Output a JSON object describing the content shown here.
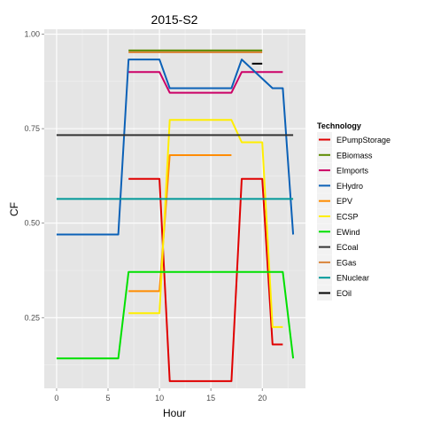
{
  "chart_data": {
    "type": "line",
    "title": "2015-S2",
    "xlabel": "Hour",
    "ylabel": "CF",
    "xlim": [
      -1.2,
      24.2
    ],
    "ylim": [
      0.063,
      1.013
    ],
    "x_ticks": [
      0,
      5,
      10,
      15,
      20
    ],
    "x_tick_labels": [
      "0",
      "5",
      "10",
      "15",
      "20"
    ],
    "y_ticks": [
      0.25,
      0.5,
      0.75,
      1.0
    ],
    "y_tick_labels": [
      "0.25",
      "0.50",
      "0.75",
      "1.00"
    ],
    "grid": true,
    "legend_title": "Technology",
    "legend_position": "right",
    "series": [
      {
        "name": "EPumpStorage",
        "color": "#e00000",
        "x": [
          7,
          10,
          11,
          17,
          18,
          20,
          21,
          22
        ],
        "y": [
          0.617,
          0.617,
          0.082,
          0.082,
          0.617,
          0.617,
          0.179,
          0.179
        ]
      },
      {
        "name": "EBiomass",
        "color": "#5c8a00",
        "x": [
          7,
          20
        ],
        "y": [
          0.957,
          0.957
        ]
      },
      {
        "name": "EImports",
        "color": "#cc0066",
        "x": [
          7,
          10,
          11,
          17,
          18,
          22
        ],
        "y": [
          0.9,
          0.9,
          0.845,
          0.845,
          0.9,
          0.9
        ]
      },
      {
        "name": "EHydro",
        "color": "#0b61b7",
        "x": [
          0,
          6,
          7,
          10,
          11,
          17,
          18,
          21,
          22,
          23
        ],
        "y": [
          0.47,
          0.47,
          0.933,
          0.933,
          0.857,
          0.857,
          0.933,
          0.857,
          0.857,
          0.47
        ]
      },
      {
        "name": "EPV",
        "color": "#ff8c00",
        "x": [
          7,
          10,
          11,
          17
        ],
        "y": [
          0.32,
          0.32,
          0.68,
          0.68
        ]
      },
      {
        "name": "ECSP",
        "color": "#ffee00",
        "x": [
          7,
          10,
          11,
          17,
          18,
          20,
          21,
          22
        ],
        "y": [
          0.262,
          0.262,
          0.773,
          0.773,
          0.714,
          0.714,
          0.225,
          0.225
        ]
      },
      {
        "name": "EWind",
        "color": "#00e000",
        "x": [
          0,
          6,
          7,
          22,
          23
        ],
        "y": [
          0.142,
          0.142,
          0.371,
          0.371,
          0.142
        ]
      },
      {
        "name": "ECoal",
        "color": "#333333",
        "x": [
          0,
          23
        ],
        "y": [
          0.733,
          0.733
        ]
      },
      {
        "name": "EGas",
        "color": "#d9853b",
        "x": [
          7,
          20
        ],
        "y": [
          0.952,
          0.952
        ]
      },
      {
        "name": "ENuclear",
        "color": "#009999",
        "x": [
          0,
          23
        ],
        "y": [
          0.564,
          0.564
        ]
      },
      {
        "name": "EOil",
        "color": "#000000",
        "x": [
          19,
          20
        ],
        "y": [
          0.922,
          0.922
        ]
      }
    ]
  }
}
